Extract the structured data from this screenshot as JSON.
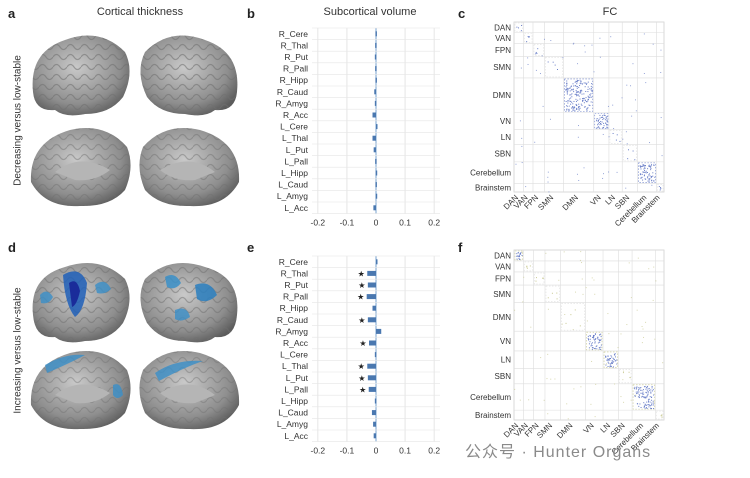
{
  "panels": {
    "a": {
      "letter": "a",
      "title": "Cortical thickness"
    },
    "b": {
      "letter": "b",
      "title": "Subcortical volume"
    },
    "c": {
      "letter": "c",
      "title": "FC"
    },
    "d": {
      "letter": "d"
    },
    "e": {
      "letter": "e"
    },
    "f": {
      "letter": "f"
    }
  },
  "row_labels": {
    "top": "Decreasing versus low-stable",
    "bottom": "Increasing versus low-stable"
  },
  "watermark": "公众号 · Hunter Organs",
  "colors": {
    "bar": "#4a78b0",
    "grid": "#e6e6e6",
    "zero_line": "#7aa3cf",
    "brain": "#9a9a9a",
    "brain_highlight": "#2a7fc0",
    "matrix_dot": "#6a7fc8",
    "matrix_dot_f": "#c8c890",
    "matrix_line": "#dddddd"
  },
  "chart_data": [
    {
      "id": "b",
      "type": "bar",
      "orientation": "horizontal",
      "title": "Subcortical volume",
      "categories": [
        "R_Cere",
        "R_Thal",
        "R_Put",
        "R_Pall",
        "R_Hipp",
        "R_Caud",
        "R_Amyg",
        "R_Acc",
        "L_Cere",
        "L_Thal",
        "L_Put",
        "L_Pall",
        "L_Hipp",
        "L_Caud",
        "L_Amyg",
        "L_Acc"
      ],
      "values": [
        -0.002,
        -0.003,
        -0.004,
        -0.003,
        -0.002,
        -0.006,
        -0.004,
        -0.012,
        0.0,
        -0.012,
        -0.008,
        -0.003,
        -0.001,
        -0.002,
        -0.001,
        -0.009
      ],
      "significant": [
        false,
        false,
        false,
        false,
        false,
        false,
        false,
        false,
        false,
        false,
        false,
        false,
        false,
        false,
        false,
        false
      ],
      "xlim": [
        -0.22,
        0.22
      ],
      "xticks": [
        "-0.2",
        "-0.1",
        "0",
        "0.1",
        "0.2"
      ],
      "xtick_values": [
        -0.2,
        -0.1,
        0,
        0.1,
        0.2
      ],
      "grid": true
    },
    {
      "id": "e",
      "type": "bar",
      "orientation": "horizontal",
      "title": "",
      "categories": [
        "R_Cere",
        "R_Thal",
        "R_Put",
        "R_Pall",
        "R_Hipp",
        "R_Caud",
        "R_Amyg",
        "R_Acc",
        "L_Cere",
        "L_Thal",
        "L_Put",
        "L_Pall",
        "L_Hipp",
        "L_Caud",
        "L_Amyg",
        "L_Acc"
      ],
      "values": [
        0.0,
        -0.03,
        -0.028,
        -0.032,
        -0.012,
        -0.028,
        0.018,
        -0.024,
        -0.004,
        -0.03,
        -0.028,
        -0.025,
        -0.004,
        -0.014,
        -0.01,
        -0.008
      ],
      "significant": [
        false,
        true,
        true,
        true,
        false,
        true,
        false,
        true,
        false,
        true,
        true,
        true,
        false,
        false,
        false,
        false
      ],
      "star": "★",
      "xlim": [
        -0.22,
        0.22
      ],
      "xticks": [
        "-0.2",
        "-0.1",
        "0",
        "0.1",
        "0.2"
      ],
      "xtick_values": [
        -0.2,
        -0.1,
        0,
        0.1,
        0.2
      ],
      "grid": true
    },
    {
      "id": "c",
      "type": "heatmap",
      "title": "FC",
      "networks": [
        "DAN",
        "VAN",
        "FPN",
        "SMN",
        "DMN",
        "VN",
        "LN",
        "SBN",
        "Cerebellum",
        "Brainstem"
      ],
      "network_weights": [
        1,
        1,
        1.2,
        2,
        3.2,
        1.6,
        1.4,
        1.6,
        2,
        0.8
      ],
      "dense_blocks": [
        "DMN",
        "VN",
        "Cerebellum"
      ]
    },
    {
      "id": "f",
      "type": "heatmap",
      "title": "",
      "networks": [
        "DAN",
        "VAN",
        "FPN",
        "SMN",
        "DMN",
        "VN",
        "LN",
        "SBN",
        "Cerebellum",
        "Brainstem"
      ],
      "network_weights": [
        1,
        1,
        1.2,
        1.6,
        2.6,
        1.8,
        1.6,
        1.4,
        2.4,
        0.9
      ],
      "dense_blocks": [
        "DAN",
        "VN",
        "LN",
        "Cerebellum"
      ]
    }
  ]
}
